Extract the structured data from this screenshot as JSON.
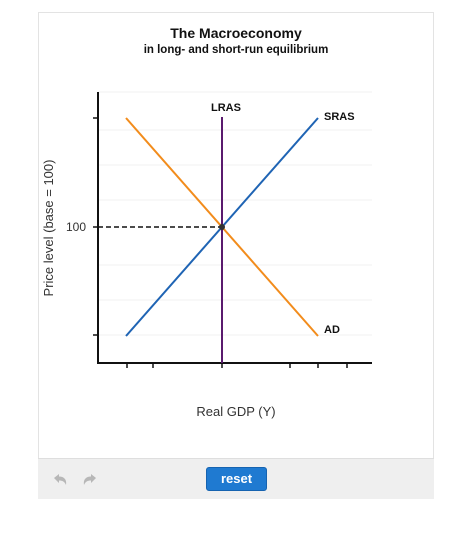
{
  "chart_data": {
    "type": "line",
    "title": "The Macroeconomy",
    "subtitle": "in long- and short-run equilibrium",
    "xlabel": "Real GDP (Y)",
    "ylabel": "Price level (base = 100)",
    "y_ticks": [
      {
        "value": 100,
        "label": "100"
      }
    ],
    "series": [
      {
        "name": "LRAS",
        "color": "#5a1a6e",
        "points": [
          [
            0,
            0
          ],
          [
            0,
            0
          ]
        ],
        "vertical": true
      },
      {
        "name": "SRAS",
        "color": "#1f64b4",
        "points": [
          [
            -1,
            -1
          ],
          [
            1,
            1
          ]
        ]
      },
      {
        "name": "AD",
        "color": "#f28c1c",
        "points": [
          [
            -1,
            1
          ],
          [
            1,
            -1
          ]
        ]
      }
    ],
    "equilibrium": {
      "x": 0,
      "y": 100,
      "guide": "dashed"
    },
    "grid": true
  },
  "controls": {
    "undo_icon": "undo-icon",
    "redo_icon": "redo-icon",
    "reset_label": "reset"
  }
}
